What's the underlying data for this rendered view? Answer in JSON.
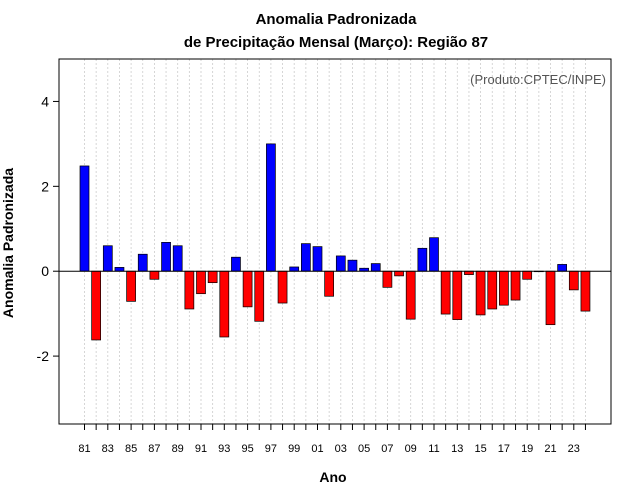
{
  "chart_data": {
    "type": "bar",
    "title_line1": "Anomalia Padronizada",
    "title_line2": "de Precipitação Mensal (Março): Região 87",
    "xlabel": "Ano",
    "ylabel": "Anomalia Padronizada",
    "annotation": "(Produto:CPTEC/INPE)",
    "ylim": [
      -3.6,
      5.0
    ],
    "yticks": [
      -2,
      0,
      2,
      4
    ],
    "ytick_labels": [
      "-2",
      "0",
      "2",
      "4"
    ],
    "grid": "vertical dotted",
    "positive_color": "#0000ff",
    "negative_color": "#ff0000",
    "categories": [
      "81",
      "82",
      "83",
      "84",
      "85",
      "86",
      "87",
      "88",
      "89",
      "90",
      "91",
      "92",
      "93",
      "94",
      "95",
      "96",
      "97",
      "98",
      "99",
      "00",
      "01",
      "02",
      "03",
      "04",
      "05",
      "06",
      "07",
      "08",
      "09",
      "10",
      "11",
      "12",
      "13",
      "14",
      "15",
      "16",
      "17",
      "18",
      "19",
      "20",
      "21",
      "22",
      "23",
      "24"
    ],
    "xtick_labels": [
      "81",
      "83",
      "85",
      "87",
      "89",
      "91",
      "93",
      "95",
      "97",
      "99",
      "01",
      "03",
      "05",
      "07",
      "09",
      "11",
      "13",
      "15",
      "17",
      "19",
      "21",
      "23"
    ],
    "values": [
      2.48,
      -1.62,
      0.6,
      0.09,
      -0.71,
      0.4,
      -0.19,
      0.68,
      0.6,
      -0.89,
      -0.53,
      -0.27,
      -1.55,
      0.33,
      -0.84,
      -1.18,
      3.0,
      -0.75,
      0.1,
      0.65,
      0.58,
      -0.59,
      0.36,
      0.26,
      0.07,
      0.18,
      -0.38,
      -0.11,
      -1.13,
      0.54,
      0.79,
      -1.01,
      -1.14,
      -0.08,
      -1.03,
      -0.89,
      -0.8,
      -0.68,
      -0.19,
      -0.01,
      -1.26,
      0.16,
      -0.44,
      -0.94
    ]
  }
}
